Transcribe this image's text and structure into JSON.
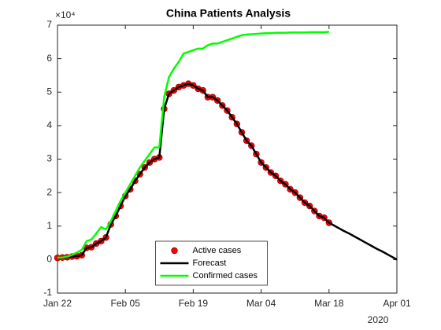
{
  "chart_data": {
    "type": "line",
    "title": "China Patients Analysis",
    "y_multiplier": "×10⁴",
    "x_year_label": "2020",
    "legend_position": "south",
    "x": [
      "2020-01-22",
      "2020-01-23",
      "2020-01-24",
      "2020-01-25",
      "2020-01-26",
      "2020-01-27",
      "2020-01-28",
      "2020-01-29",
      "2020-01-30",
      "2020-01-31",
      "2020-02-01",
      "2020-02-02",
      "2020-02-03",
      "2020-02-04",
      "2020-02-05",
      "2020-02-06",
      "2020-02-07",
      "2020-02-08",
      "2020-02-09",
      "2020-02-10",
      "2020-02-11",
      "2020-02-12",
      "2020-02-13",
      "2020-02-14",
      "2020-02-15",
      "2020-02-16",
      "2020-02-17",
      "2020-02-18",
      "2020-02-19",
      "2020-02-20",
      "2020-02-21",
      "2020-02-22",
      "2020-02-23",
      "2020-02-24",
      "2020-02-25",
      "2020-02-26",
      "2020-02-27",
      "2020-02-28",
      "2020-02-29",
      "2020-03-01",
      "2020-03-02",
      "2020-03-03",
      "2020-03-04",
      "2020-03-05",
      "2020-03-06",
      "2020-03-07",
      "2020-03-08",
      "2020-03-09",
      "2020-03-10",
      "2020-03-11",
      "2020-03-12",
      "2020-03-13",
      "2020-03-14",
      "2020-03-15",
      "2020-03-16",
      "2020-03-17",
      "2020-03-18",
      "2020-03-19",
      "2020-03-20",
      "2020-03-21",
      "2020-03-22",
      "2020-03-23",
      "2020-03-24",
      "2020-03-25",
      "2020-03-26",
      "2020-03-27",
      "2020-03-28",
      "2020-03-29",
      "2020-03-30",
      "2020-03-31",
      "2020-04-01"
    ],
    "series": [
      {
        "name": "Active cases",
        "style": "scatter",
        "color": "#ff0000",
        "values": [
          0.05,
          0.06,
          0.07,
          0.09,
          0.1,
          0.13,
          0.35,
          0.37,
          0.48,
          0.55,
          0.66,
          1.05,
          1.3,
          1.6,
          1.9,
          2.1,
          2.35,
          2.55,
          2.75,
          2.9,
          3.0,
          3.05,
          4.5,
          4.95,
          5.05,
          5.15,
          5.2,
          5.25,
          5.2,
          5.1,
          5.05,
          4.85,
          4.85,
          4.75,
          4.6,
          4.45,
          4.25,
          4.05,
          3.8,
          3.55,
          3.4,
          3.15,
          2.9,
          2.75,
          2.6,
          2.5,
          2.35,
          2.25,
          2.1,
          2.0,
          1.85,
          1.7,
          1.6,
          1.45,
          1.3,
          1.25,
          1.1,
          null,
          null,
          null,
          null,
          null,
          null,
          null,
          null,
          null,
          null,
          null,
          null,
          null,
          null
        ]
      },
      {
        "name": "Forecast",
        "style": "line",
        "color": "#000000",
        "values": [
          0.05,
          0.06,
          0.07,
          0.09,
          0.1,
          0.13,
          0.35,
          0.37,
          0.48,
          0.55,
          0.66,
          1.05,
          1.3,
          1.6,
          1.9,
          2.1,
          2.35,
          2.55,
          2.75,
          2.9,
          3.0,
          3.05,
          4.5,
          4.95,
          5.05,
          5.15,
          5.2,
          5.25,
          5.2,
          5.1,
          5.05,
          4.85,
          4.85,
          4.75,
          4.6,
          4.45,
          4.25,
          4.05,
          3.8,
          3.55,
          3.4,
          3.15,
          2.9,
          2.75,
          2.6,
          2.5,
          2.35,
          2.25,
          2.1,
          2.0,
          1.85,
          1.7,
          1.6,
          1.45,
          1.3,
          1.25,
          1.1,
          1.02,
          0.94,
          0.86,
          0.79,
          0.71,
          0.63,
          0.55,
          0.47,
          0.39,
          0.31,
          0.24,
          0.16,
          0.08,
          0
        ]
      },
      {
        "name": "Confirmed cases",
        "style": "line",
        "color": "#00ff00",
        "values": [
          0.06,
          0.06,
          0.09,
          0.14,
          0.21,
          0.29,
          0.55,
          0.6,
          0.78,
          0.97,
          0.9,
          1.15,
          1.45,
          1.75,
          2.0,
          2.25,
          2.5,
          2.75,
          2.95,
          3.15,
          3.35,
          3.35,
          4.85,
          5.45,
          5.7,
          5.9,
          6.15,
          6.2,
          6.25,
          6.3,
          6.3,
          6.4,
          6.45,
          6.45,
          6.5,
          6.55,
          6.6,
          6.65,
          6.7,
          6.72,
          6.73,
          6.74,
          6.75,
          6.76,
          6.76,
          6.77,
          6.77,
          6.77,
          6.78,
          6.78,
          6.78,
          6.78,
          6.79,
          6.79,
          6.79,
          6.79,
          6.8,
          null,
          null,
          null,
          null,
          null,
          null,
          null,
          null,
          null,
          null,
          null,
          null,
          null,
          null
        ]
      }
    ],
    "xlim": [
      "2020-01-22",
      "2020-04-01"
    ],
    "xticks": [
      {
        "value": "2020-01-22",
        "label": "Jan 22"
      },
      {
        "value": "2020-02-05",
        "label": "Feb 05"
      },
      {
        "value": "2020-02-19",
        "label": "Feb 19"
      },
      {
        "value": "2020-03-04",
        "label": "Mar 04"
      },
      {
        "value": "2020-03-18",
        "label": "Mar 18"
      },
      {
        "value": "2020-04-01",
        "label": "Apr 01"
      }
    ],
    "ylim": [
      -1,
      7
    ],
    "yticks": [
      -1,
      0,
      1,
      2,
      3,
      4,
      5,
      6,
      7
    ]
  }
}
